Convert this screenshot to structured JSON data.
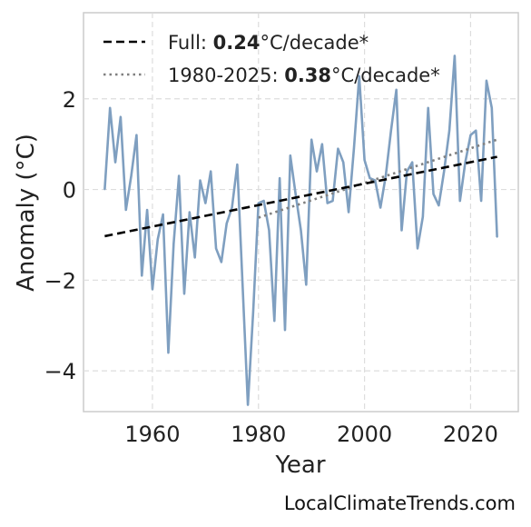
{
  "chart_data": {
    "type": "line",
    "xlabel": "Year",
    "ylabel": "Anomaly (°C)",
    "xlim": [
      1947,
      2029
    ],
    "ylim": [
      -4.9,
      3.9
    ],
    "xticks": [
      1960,
      1980,
      2000,
      2020
    ],
    "yticks": [
      -4,
      -2,
      0,
      2
    ],
    "grid": true,
    "legend_position": "top-left",
    "colors": {
      "series": "#7f9fc0",
      "full_trend": "#000000",
      "recent_trend": "#808080"
    },
    "series": [
      {
        "x": [
          1951,
          1952,
          1953,
          1954,
          1955,
          1956,
          1957,
          1958,
          1959,
          1960,
          1961,
          1962,
          1963,
          1964,
          1965,
          1966,
          1967,
          1968,
          1969,
          1970,
          1971,
          1972,
          1973,
          1974,
          1975,
          1976,
          1977,
          1978,
          1979,
          1980,
          1981,
          1982,
          1983,
          1984,
          1985,
          1986,
          1987,
          1988,
          1989,
          1990,
          1991,
          1992,
          1993,
          1994,
          1995,
          1996,
          1997,
          1998,
          1999,
          2000,
          2001,
          2002,
          2003,
          2004,
          2005,
          2006,
          2007,
          2008,
          2009,
          2010,
          2011,
          2012,
          2013,
          2014,
          2015,
          2016,
          2017,
          2018,
          2019,
          2020,
          2021,
          2022,
          2023,
          2024,
          2025
        ],
        "values": [
          0.0,
          1.8,
          0.6,
          1.6,
          -0.45,
          0.3,
          1.2,
          -1.9,
          -0.45,
          -2.2,
          -1.1,
          -0.55,
          -3.6,
          -1.2,
          0.3,
          -2.3,
          -0.5,
          -1.5,
          0.2,
          -0.3,
          0.4,
          -1.3,
          -1.6,
          -0.75,
          -0.4,
          0.55,
          -2.1,
          -4.75,
          -2.7,
          -0.3,
          -0.25,
          -0.9,
          -2.9,
          0.25,
          -3.1,
          0.75,
          -0.1,
          -0.9,
          -2.1,
          1.1,
          0.4,
          1.0,
          -0.3,
          -0.25,
          0.9,
          0.6,
          -0.5,
          0.9,
          2.5,
          0.65,
          0.25,
          0.2,
          -0.4,
          0.3,
          1.3,
          2.2,
          -0.9,
          0.4,
          0.6,
          -1.3,
          -0.6,
          1.8,
          -0.1,
          -0.35,
          0.4,
          1.3,
          2.95,
          -0.25,
          0.6,
          1.2,
          1.3,
          -0.25,
          2.4,
          1.8,
          -1.05
        ]
      }
    ],
    "trend_full": {
      "label_prefix": "Full: ",
      "label_value": "0.24",
      "label_suffix": "°C/decade*",
      "x": [
        1951,
        2025
      ],
      "values": [
        -1.03,
        0.72
      ]
    },
    "trend_recent": {
      "label_prefix": "1980-2025: ",
      "label_value": "0.38",
      "label_suffix": "°C/decade*",
      "x": [
        1980,
        2025
      ],
      "values": [
        -0.62,
        1.1
      ]
    }
  },
  "watermark": "LocalClimateTrends.com"
}
